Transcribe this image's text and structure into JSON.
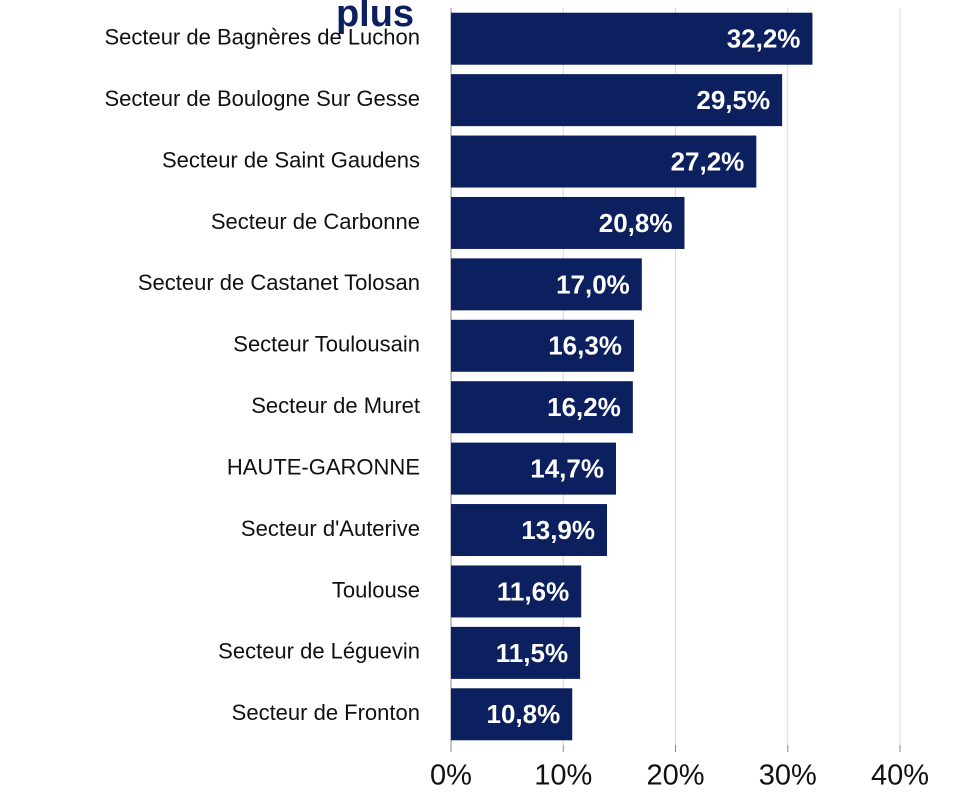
{
  "chart_data": {
    "type": "bar",
    "orientation": "horizontal",
    "title": "plus",
    "categories": [
      "Secteur de Bagnères de Luchon",
      "Secteur de Boulogne Sur Gesse",
      "Secteur de Saint Gaudens",
      "Secteur de Carbonne",
      "Secteur de Castanet Tolosan",
      "Secteur Toulousain",
      "Secteur de Muret",
      "HAUTE-GARONNE",
      "Secteur d'Auterive",
      "Toulouse",
      "Secteur de Léguevin",
      "Secteur de Fronton"
    ],
    "values": [
      32.2,
      29.5,
      27.2,
      20.8,
      17.0,
      16.3,
      16.2,
      14.7,
      13.9,
      11.6,
      11.5,
      10.8
    ],
    "value_labels": [
      "32,2%",
      "29,5%",
      "27,2%",
      "20,8%",
      "17,0%",
      "16,3%",
      "16,2%",
      "14,7%",
      "13,9%",
      "11,6%",
      "11,5%",
      "10,8%"
    ],
    "color": "#0c1f5e",
    "xlim": [
      0,
      40
    ],
    "xticks": [
      {
        "value": 0,
        "label": "0%"
      },
      {
        "value": 10,
        "label": "10%"
      },
      {
        "value": 20,
        "label": "20%"
      },
      {
        "value": 30,
        "label": "30%"
      },
      {
        "value": 40,
        "label": "40%"
      }
    ],
    "grid": true
  }
}
